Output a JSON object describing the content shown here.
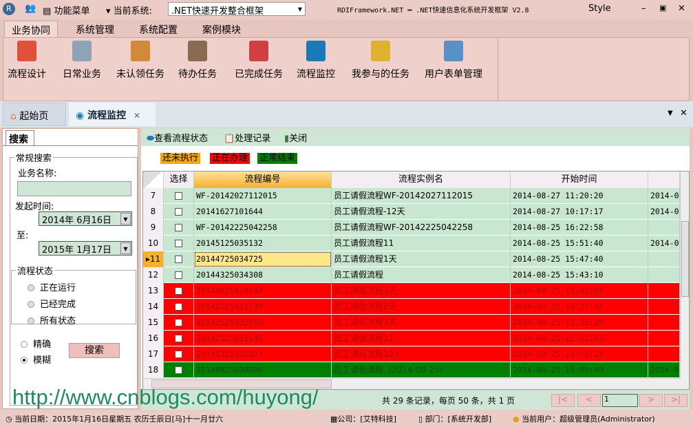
{
  "titlebar": {
    "menu_label": "功能菜单",
    "system_label": "当前系统:",
    "system_value": ".NET快速开发整合框架",
    "app_title": "RDIFramework.NET ━ .NET快速信息化系统开发框架 V2.8",
    "style_label": "Style"
  },
  "ribbon_tabs": [
    "业务协同",
    "系统管理",
    "系统配置",
    "案例模块"
  ],
  "ribbon_buttons": [
    {
      "label": "流程设计",
      "icon": "flowchart-icon",
      "color": "#e0503a"
    },
    {
      "label": "日常业务",
      "icon": "envelope-icon",
      "color": "#8fa3b8"
    },
    {
      "label": "未认领任务",
      "icon": "clipboard-icon",
      "color": "#d08a3a"
    },
    {
      "label": "待办任务",
      "icon": "clipboard-check-icon",
      "color": "#8a6a50"
    },
    {
      "label": "已完成任务",
      "icon": "calendar-check-icon",
      "color": "#d04040"
    },
    {
      "label": "流程监控",
      "icon": "eye-icon",
      "color": "#1a7ab8"
    },
    {
      "label": "我参与的任务",
      "icon": "folder-icon",
      "color": "#e0b030"
    },
    {
      "label": "用户表单管理",
      "icon": "form-icon",
      "color": "#5a90c8"
    }
  ],
  "doc_tabs": [
    {
      "label": "起始页",
      "icon": "home-icon"
    },
    {
      "label": "流程监控",
      "icon": "eye-icon"
    }
  ],
  "left": {
    "tab": "搜索",
    "group": "常规搜索",
    "name_label": "业务名称:",
    "name_value": "",
    "date_label": "发起时间:",
    "date_from": "2014年  6月16日",
    "to_label": "至:",
    "date_to": "2015年  1月17日",
    "status_group": "流程状态",
    "status_options": [
      "正在运行",
      "已经完成",
      "所有状态"
    ],
    "match_options": [
      "精确",
      "模糊"
    ],
    "match_selected": "模糊",
    "search_button": "搜索"
  },
  "toolbar": {
    "view_status": "查看流程状态",
    "records": "处理记录",
    "close": "关闭"
  },
  "legend": [
    {
      "label": "还未执行",
      "color": "#f5a800"
    },
    {
      "label": "正在办理",
      "color": "#ff0000"
    },
    {
      "label": "正常结束",
      "color": "#008000"
    }
  ],
  "grid": {
    "columns": [
      "选择",
      "流程编号",
      "流程实例名",
      "开始时间"
    ],
    "rows": [
      {
        "n": "7",
        "id": "WF-20142027112015",
        "name": "员工请假流程WF-20142027112015",
        "start": "2014-08-27 11:20:20",
        "extra": "2014-0",
        "state": "done-light"
      },
      {
        "n": "8",
        "id": "20141627101644",
        "name": "员工请假流程-12天",
        "start": "2014-08-27 10:17:17",
        "extra": "2014-0",
        "state": "done-light"
      },
      {
        "n": "9",
        "id": "WF-20142225042258",
        "name": "员工请假流程WF-20142225042258",
        "start": "2014-08-25 16:22:58",
        "extra": "",
        "state": "done-light"
      },
      {
        "n": "10",
        "id": "20145125035132",
        "name": "员工请假流程11",
        "start": "2014-08-25 15:51:40",
        "extra": "2014-0",
        "state": "done-light"
      },
      {
        "n": "11",
        "id": "20144725034725",
        "name": "员工请假流程1天",
        "start": "2014-08-25 15:47:40",
        "extra": "",
        "state": "done-light"
      },
      {
        "n": "12",
        "id": "20144325034308",
        "name": "员工请假流程",
        "start": "2014-08-25 15:43:10",
        "extra": "",
        "state": "done-light"
      },
      {
        "n": "13",
        "id": "20144025034048",
        "name": "员工请假流程1天",
        "start": "2014-08-25 15:41:06",
        "extra": "",
        "state": "running"
      },
      {
        "n": "14",
        "id": "20142725032730",
        "name": "员工请假流程2天",
        "start": "2014-08-25 15:27:43",
        "extra": "",
        "state": "running"
      },
      {
        "n": "15",
        "id": "20142525032509",
        "name": "员工请假流程3天",
        "start": "2014-08-25 15:25:29",
        "extra": "",
        "state": "running"
      },
      {
        "n": "16",
        "id": "20142125032145",
        "name": "员工请假流程11",
        "start": "2014-08-25 15:22:02",
        "extra": "",
        "state": "running"
      },
      {
        "n": "17",
        "id": "20141325031301",
        "name": "员工请假流程123",
        "start": "2014-08-25 15:13:25",
        "extra": "",
        "state": "running"
      },
      {
        "n": "18",
        "id": "20140025030000",
        "name": "员工请假流程（2014-08-25）",
        "start": "2014-08-25 15:00:49",
        "extra": "2014-0",
        "state": "done"
      }
    ],
    "current_row": "11"
  },
  "pager": {
    "summary": "共 29 条记录，每页 50 条，共 1 页",
    "page": "1"
  },
  "status": {
    "date": "当前日期：2015年1月16日星期五 农历壬辰日[马]十一月廿六",
    "company": "公司：[艾特科技]",
    "dept": "部门：[系统开发部]",
    "user": "当前用户：超级管理员(Administrator)"
  },
  "watermark": "http://www.cnblogs.com/huyong/"
}
